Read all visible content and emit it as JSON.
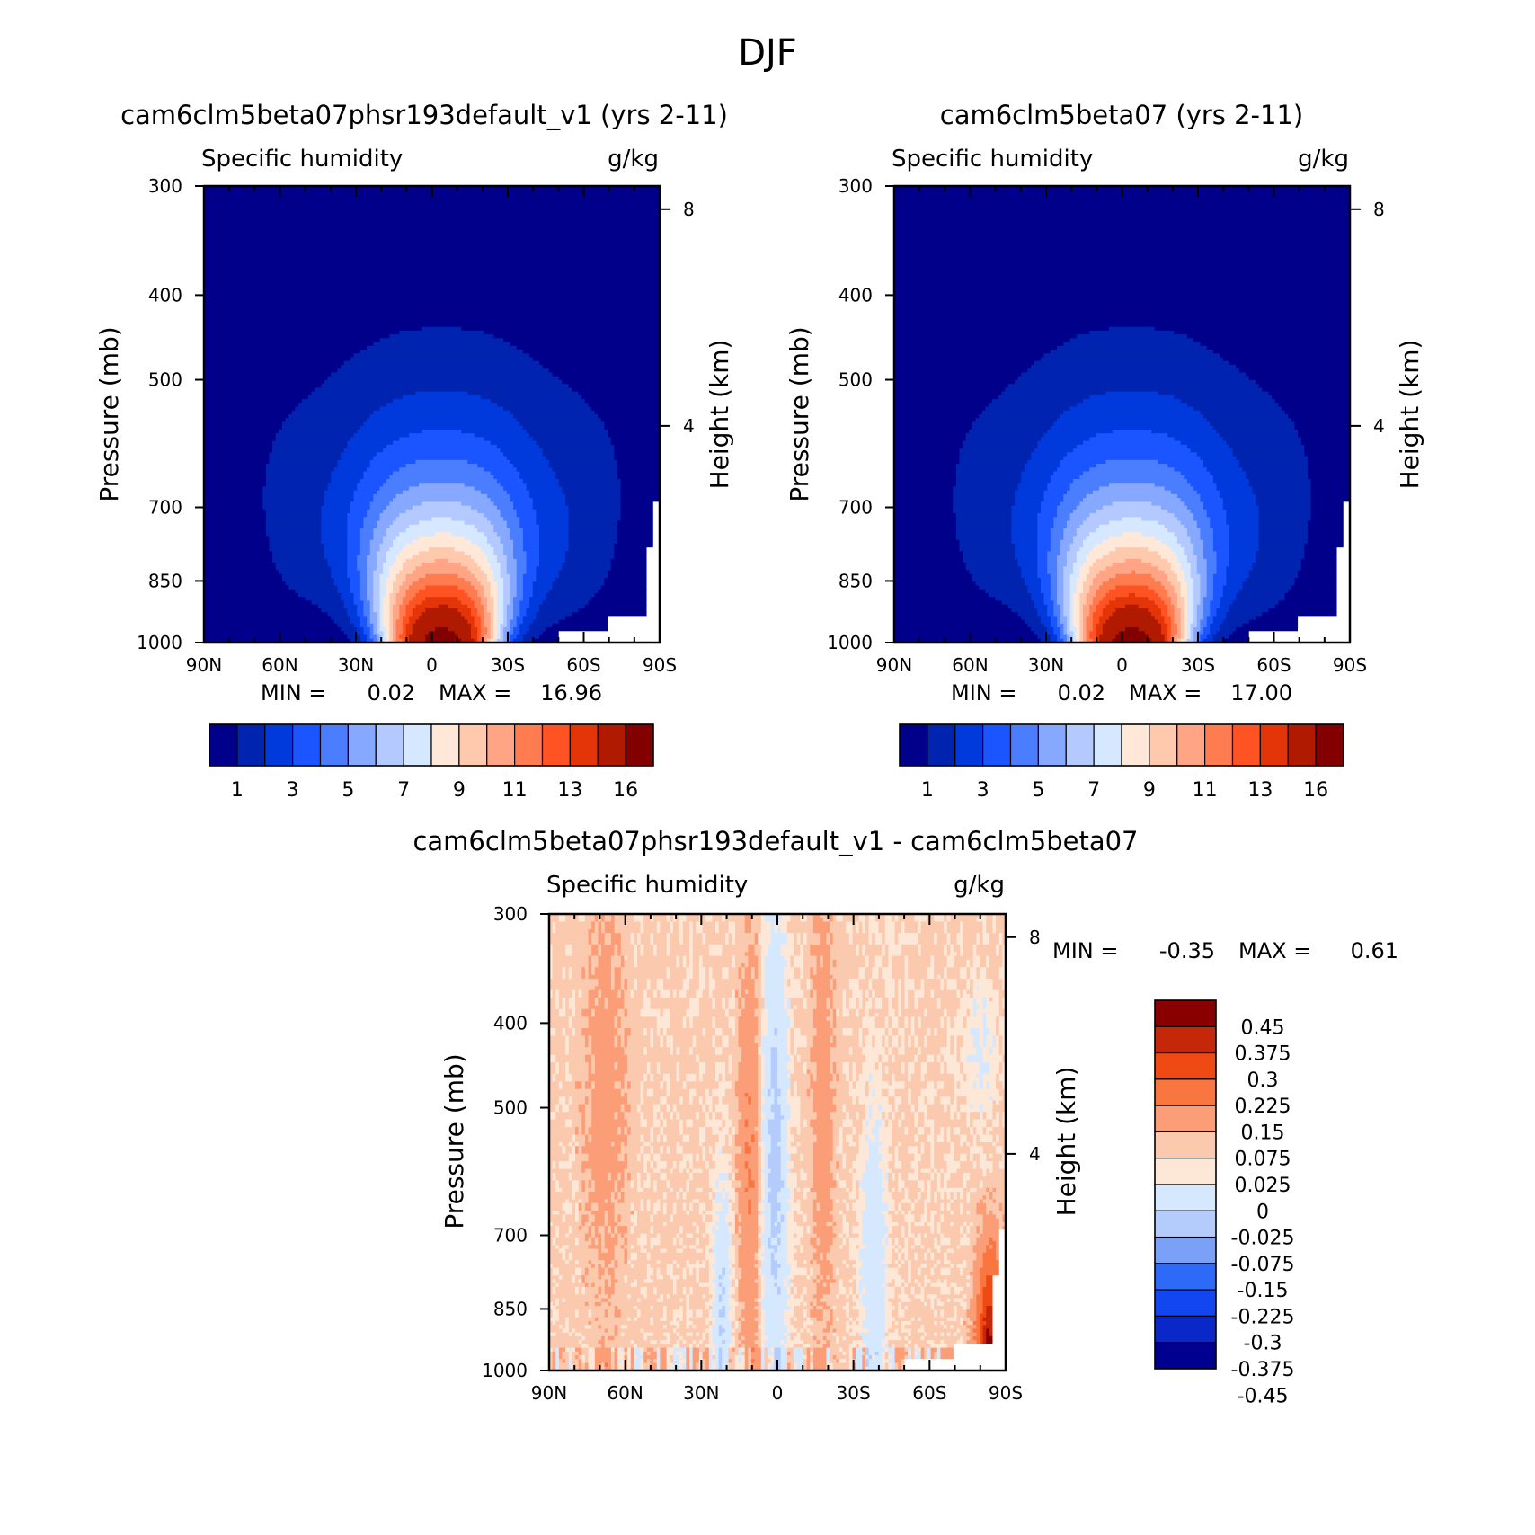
{
  "page_title": "DJF",
  "colors": {
    "abs_palette": [
      "#00008a",
      "#0023b0",
      "#0039dc",
      "#1a55ff",
      "#4b7dff",
      "#86a8ff",
      "#b3c9ff",
      "#d6e8ff",
      "#ffe8d7",
      "#ffc9ad",
      "#ffa586",
      "#ff7b50",
      "#ff5324",
      "#e33508",
      "#b01a00",
      "#820000"
    ],
    "diff_palette": [
      "#000090",
      "#0a28c8",
      "#1246f0",
      "#2e6af8",
      "#7aa0f8",
      "#b4ccfb",
      "#d6e8fd",
      "#fde8d8",
      "#fbc9ae",
      "#fb9e78",
      "#fa7640",
      "#f04a14",
      "#c42808",
      "#8a0000"
    ]
  },
  "chart_data": [
    {
      "type": "heatmap",
      "title": "cam6clm5beta07phsr193default_v1 (yrs 2-11)",
      "variable_label": "Specific humidity",
      "units_label": "g/kg",
      "ylabel": "Pressure (mb)",
      "ylabel_right": "Height (km)",
      "x_ticks": [
        "90N",
        "60N",
        "30N",
        "0",
        "30S",
        "60S",
        "90S"
      ],
      "y_ticks": [
        "300",
        "400",
        "500",
        "700",
        "850",
        "1000"
      ],
      "y_right_ticks": [
        "8",
        "4"
      ],
      "xlim": [
        90,
        -90
      ],
      "ylim_mb": [
        1000,
        300
      ],
      "stats": {
        "min_label": "MIN =",
        "min": "0.02",
        "max_label": "MAX =",
        "max": "16.96"
      },
      "peak": 16.96,
      "colorbar_ticks": [
        "1",
        "3",
        "5",
        "7",
        "9",
        "11",
        "13",
        "16"
      ]
    },
    {
      "type": "heatmap",
      "title": "cam6clm5beta07 (yrs 2-11)",
      "variable_label": "Specific humidity",
      "units_label": "g/kg",
      "ylabel": "Pressure (mb)",
      "ylabel_right": "Height (km)",
      "x_ticks": [
        "90N",
        "60N",
        "30N",
        "0",
        "30S",
        "60S",
        "90S"
      ],
      "y_ticks": [
        "300",
        "400",
        "500",
        "700",
        "850",
        "1000"
      ],
      "y_right_ticks": [
        "8",
        "4"
      ],
      "xlim": [
        90,
        -90
      ],
      "ylim_mb": [
        1000,
        300
      ],
      "stats": {
        "min_label": "MIN =",
        "min": "0.02",
        "max_label": "MAX =",
        "max": "17.00"
      },
      "peak": 17.0,
      "colorbar_ticks": [
        "1",
        "3",
        "5",
        "7",
        "9",
        "11",
        "13",
        "16"
      ]
    },
    {
      "type": "heatmap",
      "title": "cam6clm5beta07phsr193default_v1 - cam6clm5beta07",
      "variable_label": "Specific humidity",
      "units_label": "g/kg",
      "ylabel": "Pressure (mb)",
      "ylabel_right": "Height (km)",
      "x_ticks": [
        "90N",
        "60N",
        "30N",
        "0",
        "30S",
        "60S",
        "90S"
      ],
      "y_ticks": [
        "300",
        "400",
        "500",
        "700",
        "850",
        "1000"
      ],
      "y_right_ticks": [
        "8",
        "4"
      ],
      "xlim": [
        90,
        -90
      ],
      "ylim_mb": [
        1000,
        300
      ],
      "stats": {
        "min_label": "MIN =",
        "min": "-0.35",
        "max_label": "MAX =",
        "max": "0.61"
      },
      "colorbar_levels": [
        "0.45",
        "0.375",
        "0.3",
        "0.225",
        "0.15",
        "0.075",
        "0.025",
        "0",
        "-0.025",
        "-0.075",
        "-0.15",
        "-0.225",
        "-0.3",
        "-0.375",
        "-0.45"
      ]
    }
  ]
}
